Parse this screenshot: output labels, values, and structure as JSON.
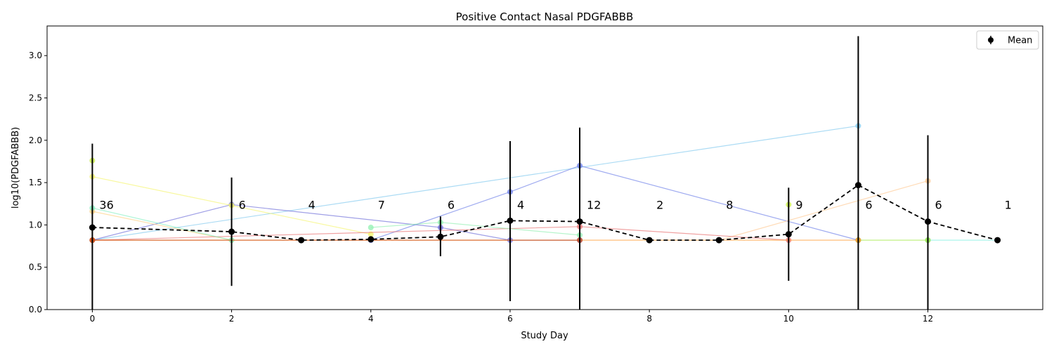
{
  "chart_data": {
    "type": "line",
    "title": "Positive Contact Nasal PDGFABBB",
    "xlabel": "Study Day",
    "ylabel": "log10(PDGFABBB)",
    "xlim": [
      -0.65,
      13.65
    ],
    "ylim": [
      0.0,
      3.35
    ],
    "xticks": [
      0,
      2,
      4,
      6,
      8,
      10,
      12
    ],
    "yticks": [
      0.0,
      0.5,
      1.0,
      1.5,
      2.0,
      2.5,
      3.0
    ],
    "xtick_labels": [
      "0",
      "2",
      "4",
      "6",
      "8",
      "10",
      "12"
    ],
    "ytick_labels": [
      "0.0",
      "0.5",
      "1.0",
      "1.5",
      "2.0",
      "2.5",
      "3.0"
    ],
    "grid": false,
    "legend": {
      "position": "top-right",
      "entries": [
        "Mean"
      ]
    },
    "mean": {
      "name": "Mean",
      "color": "#000000",
      "x": [
        0,
        2,
        3,
        4,
        5,
        6,
        7,
        8,
        9,
        10,
        11,
        12,
        13
      ],
      "y": [
        0.97,
        0.92,
        0.82,
        0.83,
        0.86,
        1.05,
        1.04,
        0.82,
        0.82,
        0.89,
        1.47,
        1.04,
        0.82
      ],
      "err_low": [
        0.0,
        0.28,
        0.82,
        0.83,
        0.63,
        0.1,
        0.0,
        0.82,
        0.82,
        0.34,
        0.0,
        0.0,
        0.82
      ],
      "err_high": [
        1.96,
        1.56,
        0.82,
        0.83,
        1.1,
        1.99,
        2.15,
        0.82,
        0.82,
        1.44,
        3.23,
        2.06,
        0.82
      ]
    },
    "counts": [
      {
        "x": 0,
        "label": "36"
      },
      {
        "x": 2,
        "label": "6"
      },
      {
        "x": 3,
        "label": "4"
      },
      {
        "x": 4,
        "label": "7"
      },
      {
        "x": 5,
        "label": "6"
      },
      {
        "x": 6,
        "label": "4"
      },
      {
        "x": 7,
        "label": "12"
      },
      {
        "x": 8,
        "label": "2"
      },
      {
        "x": 9,
        "label": "8"
      },
      {
        "x": 10,
        "label": "9"
      },
      {
        "x": 11,
        "label": "6"
      },
      {
        "x": 12,
        "label": "6"
      },
      {
        "x": 13,
        "label": "1"
      }
    ],
    "count_label_y": 1.23,
    "subjects": [
      {
        "color": "#7ec8ee",
        "x": [
          0,
          11
        ],
        "y": [
          0.82,
          2.17
        ]
      },
      {
        "color": "#6c6cd8",
        "x": [
          0,
          2,
          5,
          6,
          7
        ],
        "y": [
          0.82,
          1.24,
          0.97,
          0.82,
          0.82
        ]
      },
      {
        "color": "#6a7ce8",
        "x": [
          4,
          6,
          7,
          11
        ],
        "y": [
          0.82,
          1.39,
          1.7,
          0.82
        ]
      },
      {
        "color": "#f4f46a",
        "x": [
          0,
          2,
          4
        ],
        "y": [
          1.57,
          1.23,
          0.89
        ]
      },
      {
        "color": "#ffd080",
        "x": [
          0,
          2
        ],
        "y": [
          1.16,
          0.82
        ]
      },
      {
        "color": "#ffc890",
        "x": [
          9,
          12
        ],
        "y": [
          0.82,
          1.52
        ]
      },
      {
        "color": "#e87070",
        "x": [
          0,
          7,
          10
        ],
        "y": [
          0.82,
          0.98,
          0.82
        ]
      },
      {
        "color": "#80f0c0",
        "x": [
          0,
          2
        ],
        "y": [
          1.2,
          0.82
        ]
      },
      {
        "color": "#90f0b0",
        "x": [
          4,
          5,
          7
        ],
        "y": [
          0.97,
          1.03,
          0.88
        ]
      },
      {
        "color": "#80f0e0",
        "x": [
          12,
          13
        ],
        "y": [
          0.82,
          0.82
        ]
      },
      {
        "color": "#c8f040",
        "x": [
          0
        ],
        "y": [
          1.76
        ]
      },
      {
        "color": "#c8f040",
        "x": [
          10
        ],
        "y": [
          1.24
        ]
      },
      {
        "color": "#a0e840",
        "x": [
          11,
          12
        ],
        "y": [
          0.82,
          0.82
        ]
      },
      {
        "color": "#ff9a30",
        "x": [
          0,
          11
        ],
        "y": [
          0.82,
          0.82
        ]
      },
      {
        "color": "#c84818",
        "x": [
          0,
          7
        ],
        "y": [
          0.82,
          0.82
        ]
      }
    ]
  }
}
